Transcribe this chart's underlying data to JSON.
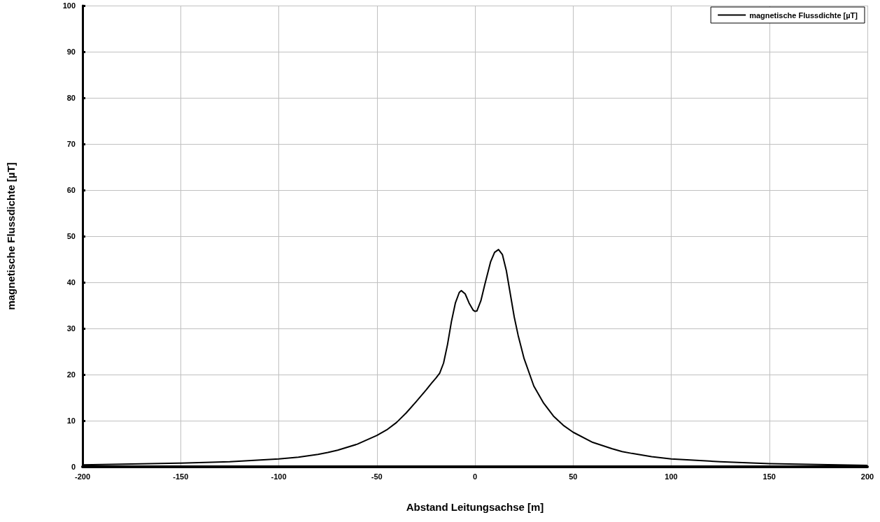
{
  "chart_data": {
    "type": "line",
    "xlabel": "Abstand Leitungsachse [m]",
    "ylabel": "magnetische Flussdichte [µT]",
    "xlim": [
      -200,
      200
    ],
    "xticks": [
      -200,
      -150,
      -100,
      -50,
      0,
      50,
      100,
      150,
      200
    ],
    "ylim": [
      0,
      100
    ],
    "yticks": [
      0,
      10,
      20,
      30,
      40,
      50,
      60,
      70,
      80,
      90,
      100
    ],
    "grid": true,
    "legend": "top right",
    "marker": "none",
    "line_style": "solid",
    "series": [
      {
        "name": "magnetische Flussdichte [µT]",
        "color": "#000000",
        "x": [
          -200,
          -175,
          -150,
          -125,
          -100,
          -90,
          -80,
          -75,
          -70,
          -60,
          -50,
          -45,
          -40,
          -35,
          -30,
          -25,
          -22,
          -20,
          -18,
          -16,
          -14,
          -12,
          -10,
          -8,
          -7,
          -5,
          -3,
          -1,
          0,
          1,
          3,
          5,
          8,
          10,
          12,
          14,
          16,
          18,
          20,
          22,
          25,
          30,
          35,
          40,
          45,
          50,
          60,
          70,
          75,
          80,
          90,
          100,
          125,
          150,
          175,
          200
        ],
        "values": [
          0.4,
          0.6,
          0.8,
          1.1,
          1.7,
          2.1,
          2.7,
          3.1,
          3.6,
          4.9,
          6.8,
          8.0,
          9.6,
          11.7,
          14.1,
          16.6,
          18.2,
          19.2,
          20.3,
          22.5,
          26.5,
          31.5,
          35.5,
          37.8,
          38.2,
          37.5,
          35.5,
          34.0,
          33.7,
          33.8,
          36.0,
          39.5,
          44.5,
          46.5,
          47.1,
          46.0,
          42.5,
          37.5,
          32.5,
          28.5,
          23.5,
          17.5,
          13.8,
          11.0,
          9.0,
          7.5,
          5.3,
          3.9,
          3.3,
          2.9,
          2.2,
          1.7,
          1.1,
          0.7,
          0.5,
          0.3
        ]
      }
    ]
  }
}
